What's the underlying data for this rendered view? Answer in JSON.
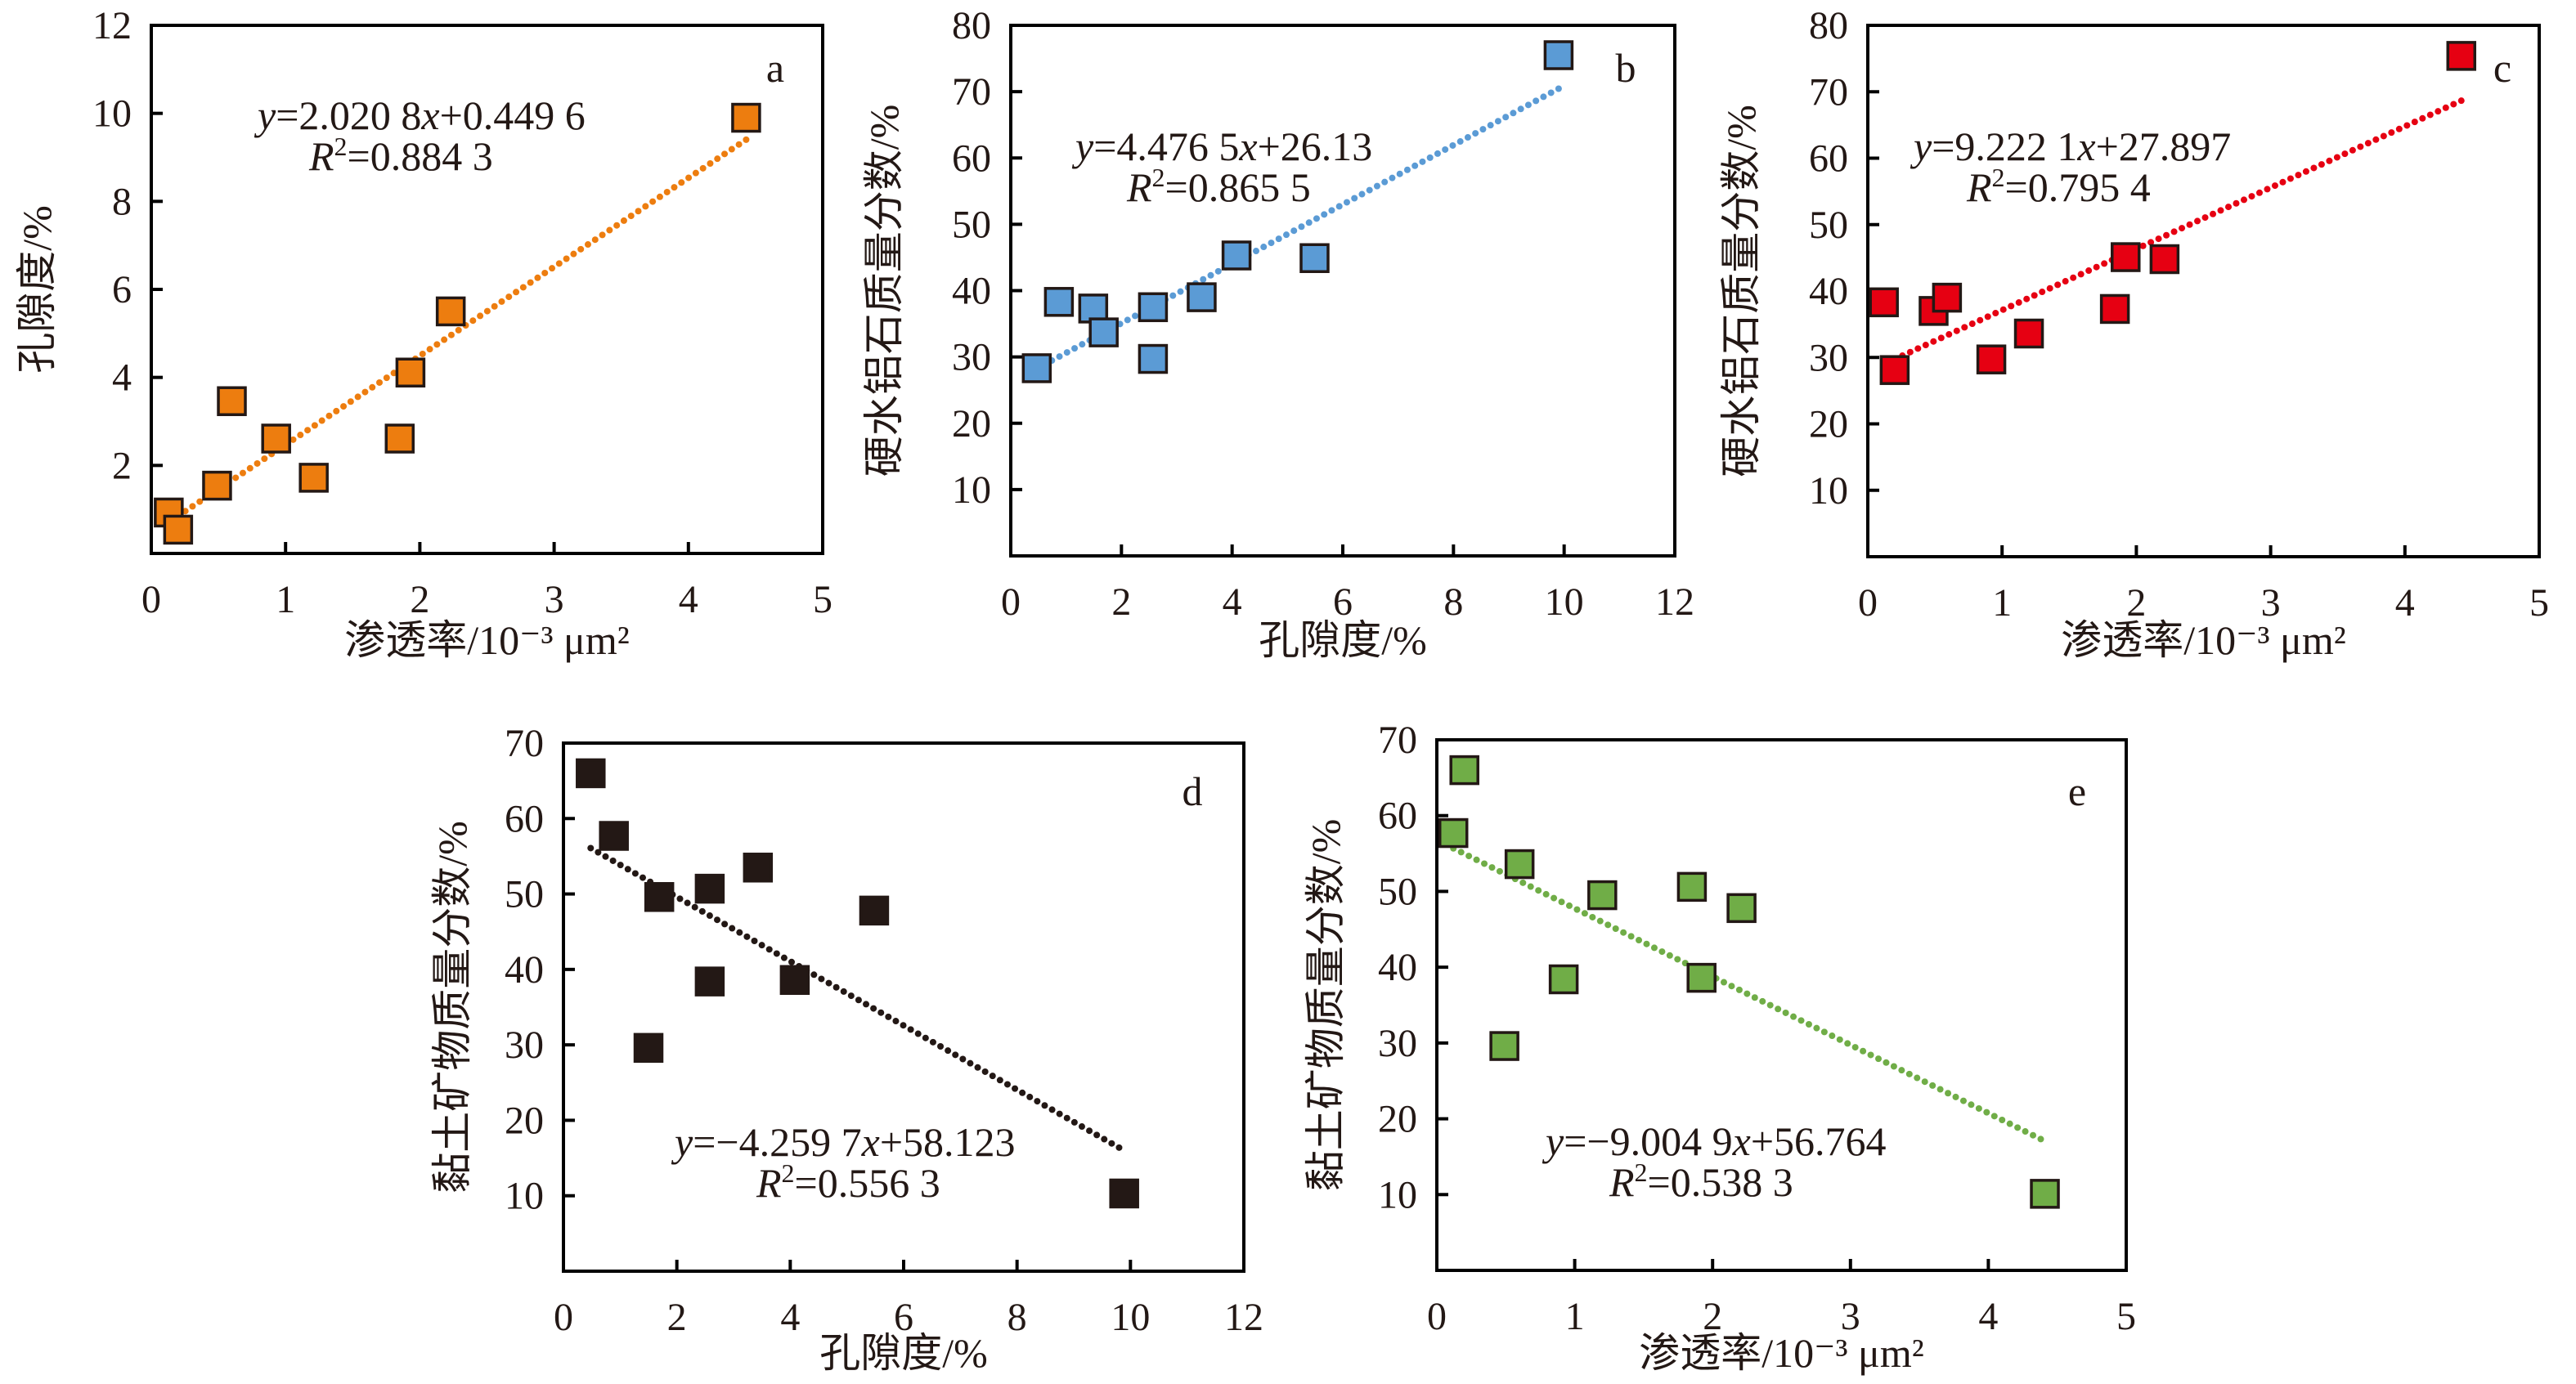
{
  "figure": {
    "colors": {
      "a": "#ED7D0F",
      "b": "#5B9BD5",
      "c": "#E60012",
      "d": "#231815",
      "e": "#70AD47",
      "marker_edge": "#231815",
      "text": "#231815"
    }
  },
  "chart_data": [
    {
      "id": "a",
      "type": "scatter",
      "panel_label": "a",
      "xlabel": "渗透率/10⁻³ μm²",
      "ylabel": "孔隙度/%",
      "xlim": [
        0,
        5
      ],
      "ylim": [
        0,
        12
      ],
      "xticks": [
        0,
        1,
        2,
        3,
        4,
        5
      ],
      "yticks": [
        2,
        4,
        6,
        8,
        10,
        12
      ],
      "ytick_labels_extra_zero": false,
      "points": [
        {
          "x": 0.13,
          "y": 0.93
        },
        {
          "x": 0.2,
          "y": 0.54
        },
        {
          "x": 0.49,
          "y": 1.54
        },
        {
          "x": 0.6,
          "y": 3.46
        },
        {
          "x": 0.93,
          "y": 2.61
        },
        {
          "x": 1.21,
          "y": 1.72
        },
        {
          "x": 1.85,
          "y": 2.61
        },
        {
          "x": 1.93,
          "y": 4.11
        },
        {
          "x": 2.23,
          "y": 5.5
        },
        {
          "x": 4.43,
          "y": 9.9
        }
      ],
      "trendline": {
        "slope": 2.0208,
        "intercept": 0.4496,
        "x_range": [
          0.2,
          4.43
        ],
        "style": "dotted"
      },
      "equation": {
        "y_prefix": "y",
        "eq_body": "=2.020 8",
        "x_sym": "x",
        "eq_tail": "+0.449 6",
        "r_sym": "R",
        "r_sup": "2",
        "r_body": "=0.884 3"
      },
      "r_squared": 0.8843,
      "grid": false
    },
    {
      "id": "b",
      "type": "scatter",
      "panel_label": "b",
      "xlabel": "孔隙度/%",
      "ylabel": "硬水铝石质量分数/%",
      "xlim": [
        0,
        12
      ],
      "ylim": [
        0,
        80
      ],
      "xticks": [
        0,
        2,
        4,
        6,
        8,
        10,
        12
      ],
      "yticks": [
        10,
        20,
        30,
        40,
        50,
        60,
        70,
        80
      ],
      "points": [
        {
          "x": 0.47,
          "y": 28.3
        },
        {
          "x": 0.87,
          "y": 38.3
        },
        {
          "x": 1.49,
          "y": 37.3
        },
        {
          "x": 1.68,
          "y": 33.7
        },
        {
          "x": 2.57,
          "y": 37.5
        },
        {
          "x": 2.57,
          "y": 29.7
        },
        {
          "x": 3.45,
          "y": 39.0
        },
        {
          "x": 4.08,
          "y": 45.3
        },
        {
          "x": 5.49,
          "y": 44.9
        },
        {
          "x": 9.9,
          "y": 75.5
        }
      ],
      "trendline": {
        "slope": 4.4765,
        "intercept": 26.13,
        "x_range": [
          0.47,
          9.9
        ],
        "style": "dotted"
      },
      "equation": {
        "y_prefix": "y",
        "eq_body": "=4.476 5",
        "x_sym": "x",
        "eq_tail": "+26.13",
        "r_sym": "R",
        "r_sup": "2",
        "r_body": "=0.865 5"
      },
      "r_squared": 0.8655,
      "grid": false
    },
    {
      "id": "c",
      "type": "scatter",
      "panel_label": "c",
      "xlabel": "渗透率/10⁻³ μm²",
      "ylabel": "硬水铝石质量分数/%",
      "xlim": [
        0,
        5
      ],
      "ylim": [
        0,
        80
      ],
      "xticks": [
        0,
        1,
        2,
        3,
        4,
        5
      ],
      "yticks": [
        10,
        20,
        30,
        40,
        50,
        60,
        70,
        80
      ],
      "points": [
        {
          "x": 0.12,
          "y": 38.3
        },
        {
          "x": 0.2,
          "y": 28.1
        },
        {
          "x": 0.49,
          "y": 37.0
        },
        {
          "x": 0.59,
          "y": 39.0
        },
        {
          "x": 0.92,
          "y": 29.7
        },
        {
          "x": 1.2,
          "y": 33.6
        },
        {
          "x": 1.84,
          "y": 37.3
        },
        {
          "x": 1.92,
          "y": 45.1
        },
        {
          "x": 2.21,
          "y": 44.8
        },
        {
          "x": 4.42,
          "y": 75.4
        }
      ],
      "trendline": {
        "slope": 9.2221,
        "intercept": 27.897,
        "x_range": [
          0.2,
          4.42
        ],
        "style": "dotted"
      },
      "equation": {
        "y_prefix": "y",
        "eq_body": "=9.222 1",
        "x_sym": "x",
        "eq_tail": "+27.897",
        "r_sym": "R",
        "r_sup": "2",
        "r_body": "=0.795 4"
      },
      "r_squared": 0.7954,
      "grid": false
    },
    {
      "id": "d",
      "type": "scatter",
      "panel_label": "d",
      "xlabel": "孔隙度/%",
      "ylabel": "黏土矿物质量分数/%",
      "xlim": [
        0,
        12
      ],
      "ylim": [
        0,
        70
      ],
      "xticks": [
        0,
        2,
        4,
        6,
        8,
        10,
        12
      ],
      "yticks": [
        10,
        20,
        30,
        40,
        50,
        60,
        70
      ],
      "points": [
        {
          "x": 0.48,
          "y": 66.0
        },
        {
          "x": 0.89,
          "y": 57.7
        },
        {
          "x": 1.5,
          "y": 29.6
        },
        {
          "x": 1.69,
          "y": 49.6
        },
        {
          "x": 2.58,
          "y": 50.7
        },
        {
          "x": 2.58,
          "y": 38.4
        },
        {
          "x": 3.43,
          "y": 53.5
        },
        {
          "x": 4.08,
          "y": 38.6
        },
        {
          "x": 5.48,
          "y": 47.8
        },
        {
          "x": 9.89,
          "y": 10.3
        }
      ],
      "trendline": {
        "slope": -4.2597,
        "intercept": 58.123,
        "x_range": [
          0.48,
          9.8
        ],
        "style": "dotted"
      },
      "equation": {
        "y_prefix": "y",
        "eq_body": "=−4.259 7",
        "x_sym": "x",
        "eq_tail": "+58.123",
        "r_sym": "R",
        "r_sup": "2",
        "r_body": "=0.556 3"
      },
      "r_squared": 0.5563,
      "grid": false
    },
    {
      "id": "e",
      "type": "scatter",
      "panel_label": "e",
      "xlabel": "渗透率/10⁻³ μm²",
      "ylabel": "黏土矿物质量分数/%",
      "xlim": [
        0,
        5
      ],
      "ylim": [
        0,
        70
      ],
      "xticks": [
        0,
        1,
        2,
        3,
        4,
        5
      ],
      "yticks": [
        10,
        20,
        30,
        40,
        50,
        60,
        70
      ],
      "points": [
        {
          "x": 0.12,
          "y": 57.7
        },
        {
          "x": 0.2,
          "y": 66.0
        },
        {
          "x": 0.49,
          "y": 29.6
        },
        {
          "x": 0.6,
          "y": 53.6
        },
        {
          "x": 0.92,
          "y": 38.4
        },
        {
          "x": 1.2,
          "y": 49.5
        },
        {
          "x": 1.85,
          "y": 50.6
        },
        {
          "x": 1.92,
          "y": 38.6
        },
        {
          "x": 2.21,
          "y": 47.8
        },
        {
          "x": 4.41,
          "y": 10.1
        }
      ],
      "trendline": {
        "slope": -9.0049,
        "intercept": 56.764,
        "x_range": [
          0.12,
          4.38
        ],
        "style": "dotted"
      },
      "equation": {
        "y_prefix": "y",
        "eq_body": "=−9.004 9",
        "x_sym": "x",
        "eq_tail": "+56.764",
        "r_sym": "R",
        "r_sup": "2",
        "r_body": "=0.538 3"
      },
      "r_squared": 0.5383,
      "grid": false
    }
  ]
}
